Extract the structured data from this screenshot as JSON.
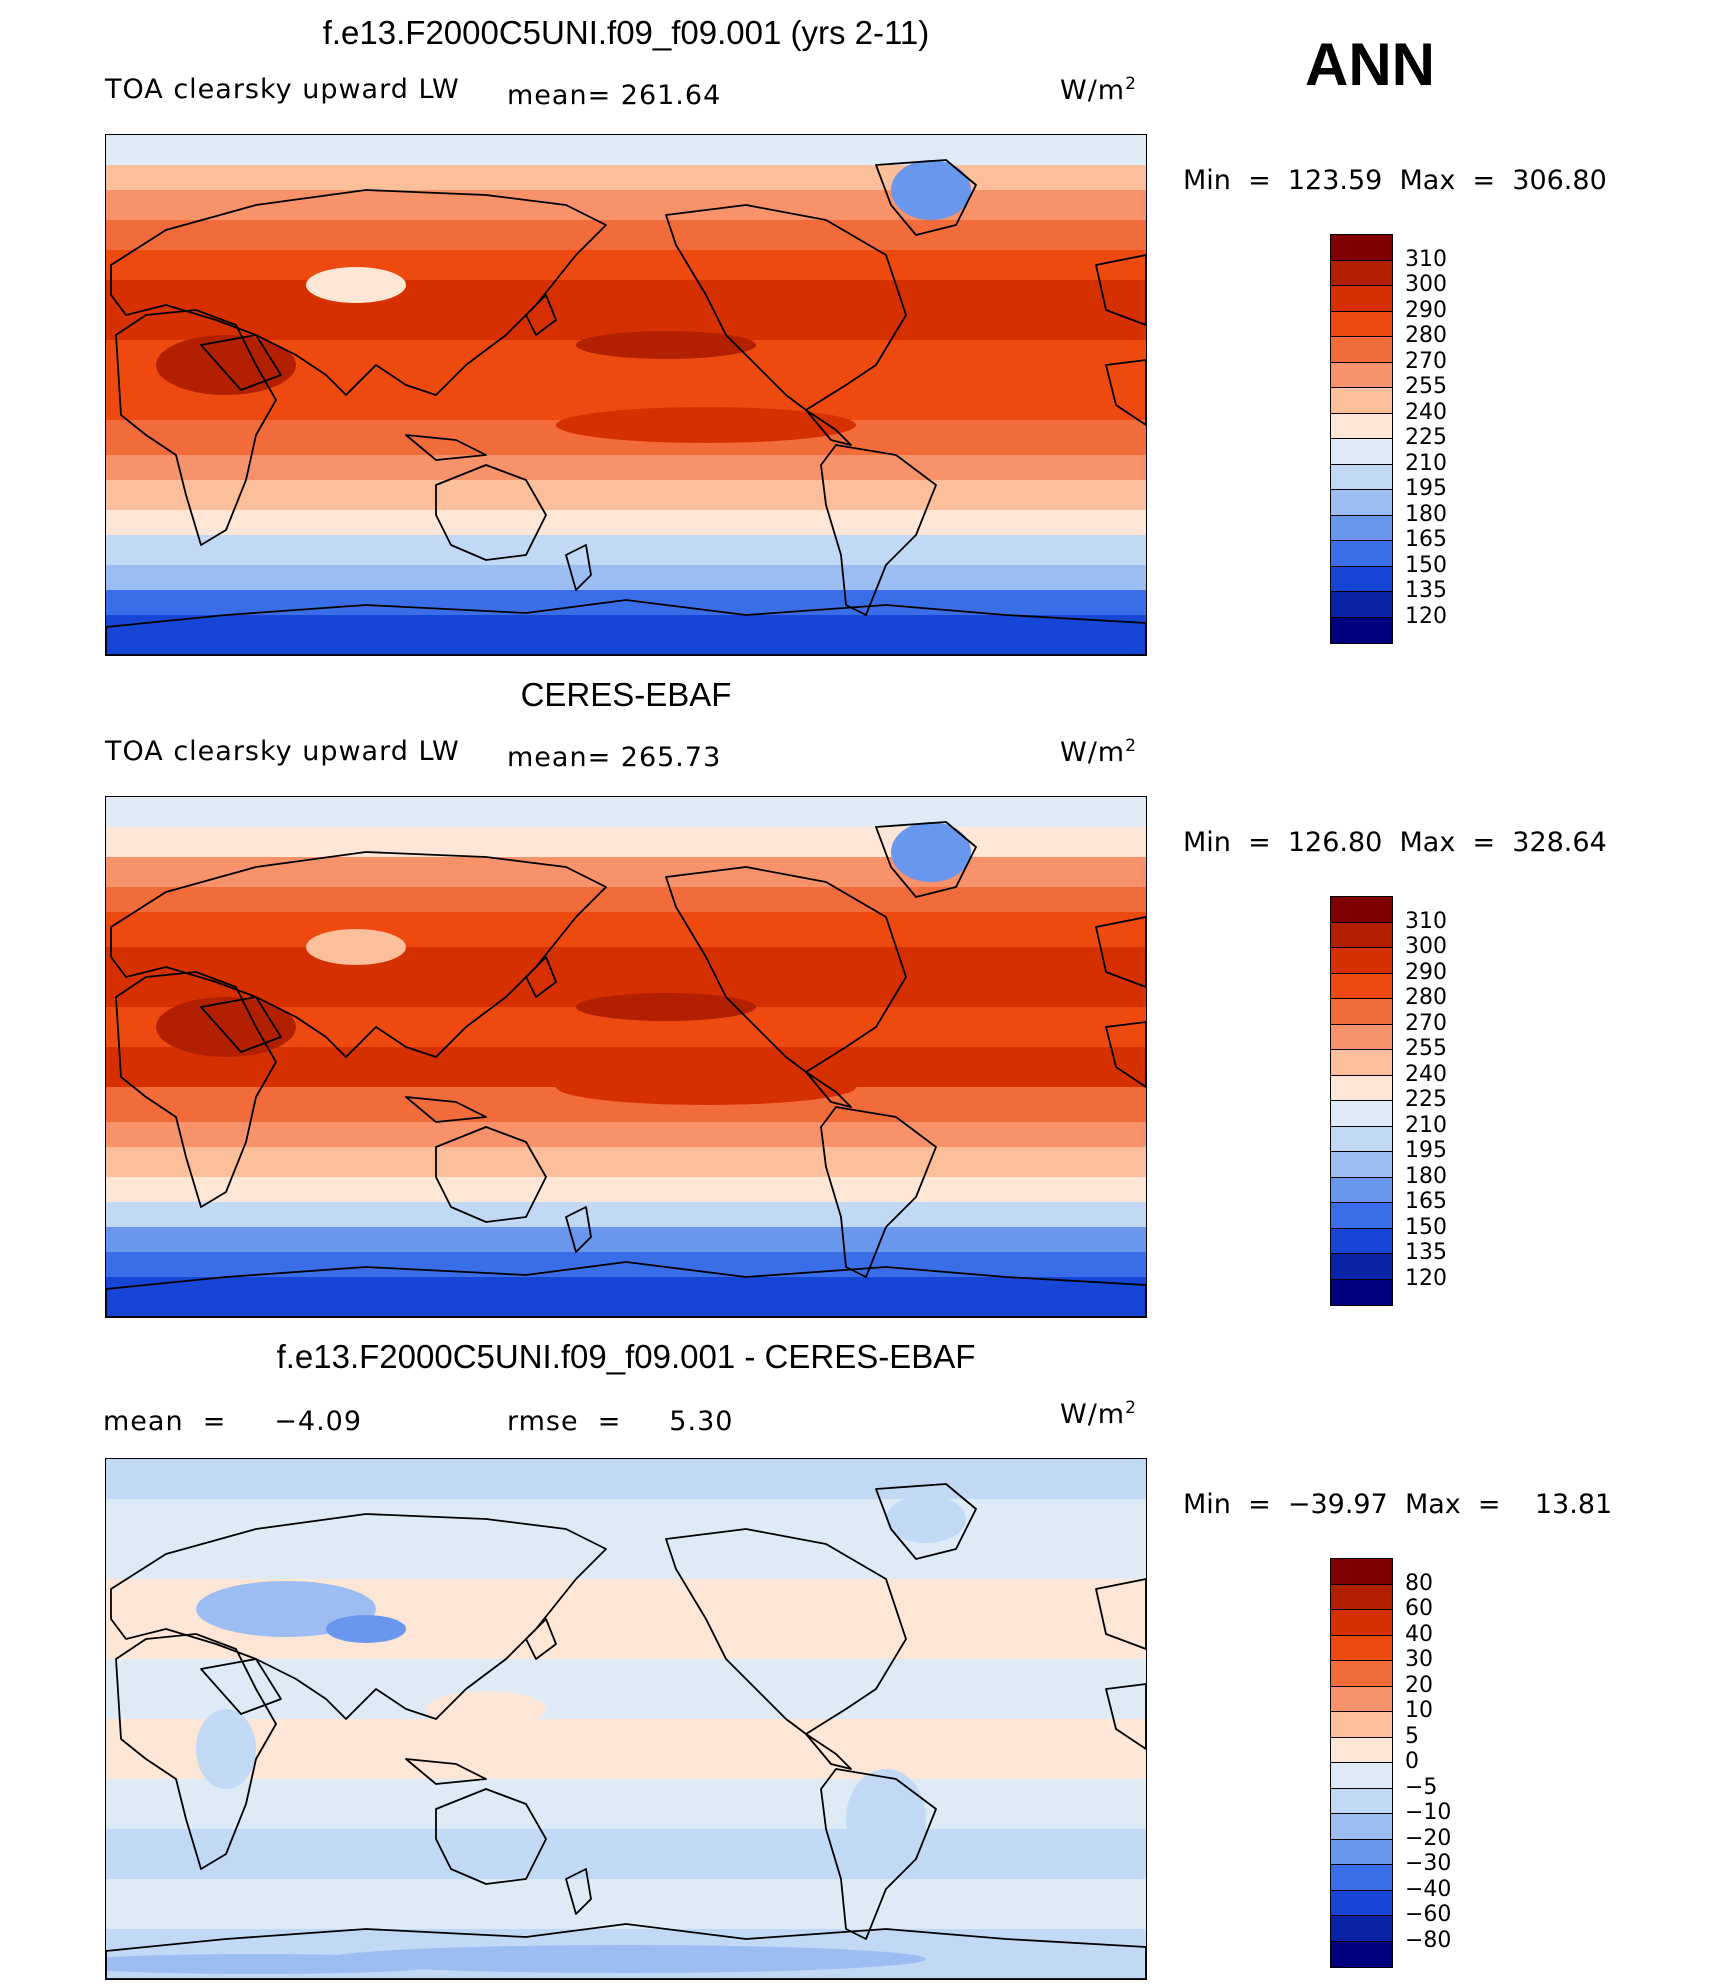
{
  "ann_label": "ANN",
  "units_base": "W/m",
  "units_exp": "2",
  "panels": [
    {
      "title": "f.e13.F2000C5UNI.f09_f09.001 (yrs 2-11)",
      "variable": "TOA clearsky upward LW",
      "stat1": "mean= 261.64",
      "stat2": "",
      "minmax": "Min  =  123.59  Max  =  306.80",
      "levels": [
        "310",
        "300",
        "290",
        "280",
        "270",
        "255",
        "240",
        "225",
        "210",
        "195",
        "180",
        "165",
        "150",
        "135",
        "120"
      ],
      "colors": [
        "#7f0000",
        "#b22000",
        "#d73000",
        "#ee4a10",
        "#f26b3a",
        "#f7926a",
        "#fbbf9c",
        "#fde6d6",
        "#deebf7",
        "#c2d9f5",
        "#9cbdf2",
        "#6a97ee",
        "#3a6ee8",
        "#1746d6",
        "#0a24a8",
        "#00007f"
      ],
      "map_style": "model"
    },
    {
      "title": "CERES-EBAF",
      "variable": "TOA clearsky upward LW",
      "stat1": "mean= 265.73",
      "stat2": "",
      "minmax": "Min  =  126.80  Max  =  328.64",
      "levels": [
        "310",
        "300",
        "290",
        "280",
        "270",
        "255",
        "240",
        "225",
        "210",
        "195",
        "180",
        "165",
        "150",
        "135",
        "120"
      ],
      "colors": [
        "#7f0000",
        "#b22000",
        "#d73000",
        "#ee4a10",
        "#f26b3a",
        "#f7926a",
        "#fbbf9c",
        "#fde6d6",
        "#deebf7",
        "#c2d9f5",
        "#9cbdf2",
        "#6a97ee",
        "#3a6ee8",
        "#1746d6",
        "#0a24a8",
        "#00007f"
      ],
      "map_style": "obs"
    },
    {
      "title": "f.e13.F2000C5UNI.f09_f09.001 - CERES-EBAF",
      "variable": "mean  =     −4.09",
      "stat1": "rmse  =     5.30",
      "stat2": "",
      "minmax": "Min  =  −39.97  Max  =    13.81",
      "levels": [
        "80",
        "60",
        "40",
        "30",
        "20",
        "10",
        "5",
        "0",
        "−5",
        "−10",
        "−20",
        "−30",
        "−40",
        "−60",
        "−80"
      ],
      "colors": [
        "#7f0000",
        "#b22000",
        "#d73000",
        "#ee4a10",
        "#f26b3a",
        "#f7926a",
        "#fbbf9c",
        "#fde6d6",
        "#deebf7",
        "#c2d9f5",
        "#9cbdf2",
        "#6a97ee",
        "#3a6ee8",
        "#1746d6",
        "#0a24a8",
        "#00007f"
      ],
      "map_style": "diff"
    }
  ]
}
